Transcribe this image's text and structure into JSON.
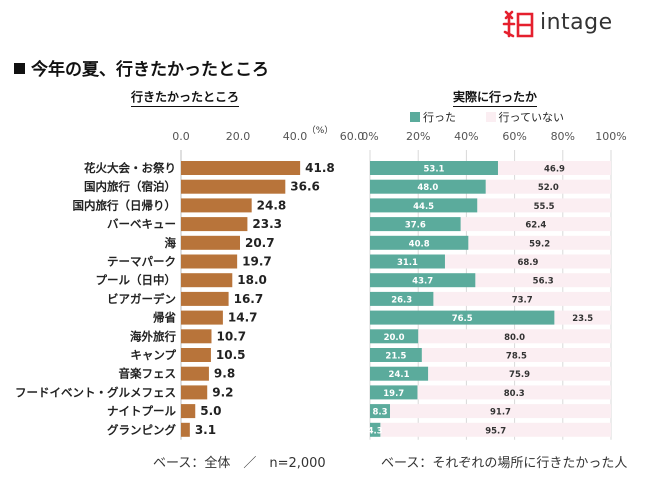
{
  "brand": {
    "name": "intage",
    "accent": "#e5202e"
  },
  "title": "今年の夏、行きたかったところ",
  "left_panel_heading": "行きたかったところ",
  "right_panel_heading": "実際に行ったか",
  "legend": {
    "went": "行った",
    "not_went": "行っていない"
  },
  "footer": {
    "left": "ベース：全体　／　n=2,000",
    "right": "ベース：それぞれの場所に行きたかった人"
  },
  "colors": {
    "bar": "#b8743a",
    "went": "#5bab9c",
    "not_went": "#fbeef2",
    "grid": "#d9d9d9"
  },
  "chart_data": [
    {
      "type": "bar",
      "orientation": "horizontal",
      "title": "行きたかったところ",
      "unit_label": "（%）",
      "xlim": [
        0,
        60
      ],
      "ticks": [
        "0.0",
        "20.0",
        "40.0",
        "60.0"
      ],
      "categories": [
        "花火大会・お祭り",
        "国内旅行（宿泊）",
        "国内旅行（日帰り）",
        "バーベキュー",
        "海",
        "テーマパーク",
        "プール（日中）",
        "ビアガーデン",
        "帰省",
        "海外旅行",
        "キャンプ",
        "音楽フェス",
        "フードイベント・グルメフェス",
        "ナイトプール",
        "グランピング"
      ],
      "values": [
        41.8,
        36.6,
        24.8,
        23.3,
        20.7,
        19.7,
        18.0,
        16.7,
        14.7,
        10.7,
        10.5,
        9.8,
        9.2,
        5.0,
        3.1
      ],
      "value_labels": [
        "41.8",
        "36.6",
        "24.8",
        "23.3",
        "20.7",
        "19.7",
        "18.0",
        "16.7",
        "14.7",
        "10.7",
        "10.5",
        "9.8",
        "9.2",
        "5.0",
        "3.1"
      ]
    },
    {
      "type": "bar",
      "orientation": "horizontal",
      "stacked": true,
      "title": "実際に行ったか",
      "xlim": [
        0,
        100
      ],
      "ticks": [
        "0%",
        "20%",
        "40%",
        "60%",
        "80%",
        "100%"
      ],
      "series": [
        {
          "name": "行った",
          "values": [
            53.1,
            48.0,
            44.5,
            37.6,
            40.8,
            31.1,
            43.7,
            26.3,
            76.5,
            20.0,
            21.5,
            24.1,
            19.7,
            8.3,
            4.3
          ],
          "labels": [
            "53.1",
            "48.0",
            "44.5",
            "37.6",
            "40.8",
            "31.1",
            "43.7",
            "26.3",
            "76.5",
            "20.0",
            "21.5",
            "24.1",
            "19.7",
            "8.3",
            "4.3"
          ]
        },
        {
          "name": "行っていない",
          "values": [
            46.9,
            52.0,
            55.5,
            62.4,
            59.2,
            68.9,
            56.3,
            73.7,
            23.5,
            80.0,
            78.5,
            75.9,
            80.3,
            91.7,
            95.7
          ],
          "labels": [
            "46.9",
            "52.0",
            "55.5",
            "62.4",
            "59.2",
            "68.9",
            "56.3",
            "73.7",
            "23.5",
            "80.0",
            "78.5",
            "75.9",
            "80.3",
            "91.7",
            "95.7"
          ]
        }
      ]
    }
  ]
}
